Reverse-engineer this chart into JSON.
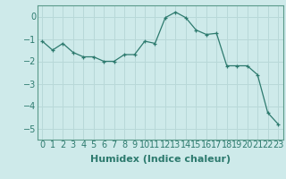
{
  "x": [
    0,
    1,
    2,
    3,
    4,
    5,
    6,
    7,
    8,
    9,
    10,
    11,
    12,
    13,
    14,
    15,
    16,
    17,
    18,
    19,
    20,
    21,
    22,
    23
  ],
  "y": [
    -1.1,
    -1.5,
    -1.2,
    -1.6,
    -1.8,
    -1.8,
    -2.0,
    -2.0,
    -1.7,
    -1.7,
    -1.1,
    -1.2,
    -0.05,
    0.2,
    -0.05,
    -0.6,
    -0.8,
    -0.75,
    -2.2,
    -2.2,
    -2.2,
    -2.6,
    -4.3,
    -4.8
  ],
  "xlabel": "Humidex (Indice chaleur)",
  "ylim": [
    -5.5,
    0.5
  ],
  "xlim": [
    -0.5,
    23.5
  ],
  "yticks": [
    0,
    -1,
    -2,
    -3,
    -4,
    -5
  ],
  "xtick_labels": [
    "0",
    "1",
    "2",
    "3",
    "4",
    "5",
    "6",
    "7",
    "8",
    "9",
    "10",
    "11",
    "12",
    "13",
    "14",
    "15",
    "16",
    "17",
    "18",
    "19",
    "20",
    "21",
    "22",
    "23"
  ],
  "line_color": "#2d7a6e",
  "marker_color": "#2d7a6e",
  "bg_color": "#ceeaea",
  "grid_color": "#b8d8d8",
  "fig_bg": "#ceeaea",
  "xlabel_fontsize": 8,
  "tick_fontsize": 7
}
